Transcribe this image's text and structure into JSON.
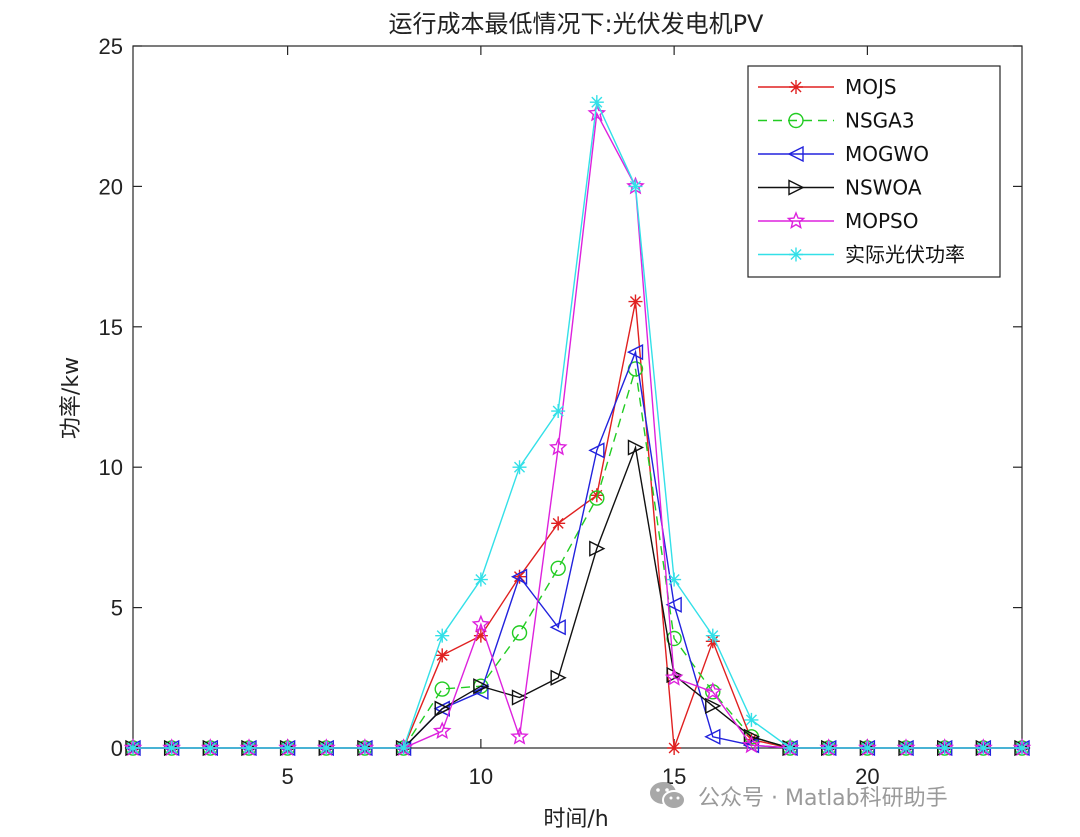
{
  "chart_data": {
    "type": "line",
    "title": "运行成本最低情况下:光伏发电机PV",
    "xlabel": "时间/h",
    "ylabel": "功率/kw",
    "xlim": [
      1,
      24
    ],
    "ylim": [
      0,
      25
    ],
    "xticks": [
      5,
      10,
      15,
      20
    ],
    "yticks": [
      0,
      5,
      10,
      15,
      20,
      25
    ],
    "x": [
      1,
      2,
      3,
      4,
      5,
      6,
      7,
      8,
      9,
      10,
      11,
      12,
      13,
      14,
      15,
      16,
      17,
      18,
      19,
      20,
      21,
      22,
      23,
      24
    ],
    "legend_position": "top-right",
    "series": [
      {
        "name": "MOJS",
        "color": "#e02020",
        "marker": "asterisk",
        "dash": "solid",
        "values": [
          0,
          0,
          0,
          0,
          0,
          0,
          0,
          0,
          3.3,
          4.0,
          6.1,
          8.0,
          9.0,
          15.9,
          0.0,
          3.8,
          0.3,
          0,
          0,
          0,
          0,
          0,
          0,
          0
        ]
      },
      {
        "name": "NSGA3",
        "color": "#22cc22",
        "marker": "circle",
        "dash": "dashed",
        "values": [
          0,
          0,
          0,
          0,
          0,
          0,
          0,
          0,
          2.1,
          2.2,
          4.1,
          6.4,
          8.9,
          13.5,
          3.9,
          2.0,
          0.4,
          0,
          0,
          0,
          0,
          0,
          0,
          0
        ]
      },
      {
        "name": "MOGWO",
        "color": "#2222dd",
        "marker": "triangle-left",
        "dash": "solid",
        "values": [
          0,
          0,
          0,
          0,
          0,
          0,
          0,
          0,
          1.4,
          2.0,
          6.1,
          4.3,
          10.6,
          14.1,
          5.1,
          0.4,
          0.1,
          0,
          0,
          0,
          0,
          0,
          0,
          0
        ]
      },
      {
        "name": "NSWOA",
        "color": "#111111",
        "marker": "triangle-right",
        "dash": "solid",
        "values": [
          0,
          0,
          0,
          0,
          0,
          0,
          0,
          0,
          1.4,
          2.2,
          1.8,
          2.5,
          7.1,
          10.7,
          2.6,
          1.5,
          0.4,
          0,
          0,
          0,
          0,
          0,
          0,
          0
        ]
      },
      {
        "name": "MOPSO",
        "color": "#dd22dd",
        "marker": "star",
        "dash": "solid",
        "values": [
          0,
          0,
          0,
          0,
          0,
          0,
          0,
          0,
          0.6,
          4.4,
          0.4,
          10.7,
          22.6,
          20.0,
          2.5,
          2.0,
          0.1,
          0,
          0,
          0,
          0,
          0,
          0,
          0
        ]
      },
      {
        "name": "实际光伏功率",
        "color": "#33e0e8",
        "marker": "asterisk",
        "dash": "solid",
        "values": [
          0,
          0,
          0,
          0,
          0,
          0,
          0,
          0,
          4.0,
          6.0,
          10.0,
          12.0,
          23.0,
          20.0,
          6.0,
          4.0,
          1.0,
          0,
          0,
          0,
          0,
          0,
          0,
          0
        ]
      }
    ]
  },
  "watermark": {
    "text": "公众号 · Matlab科研助手",
    "icon": "wechat-icon"
  }
}
